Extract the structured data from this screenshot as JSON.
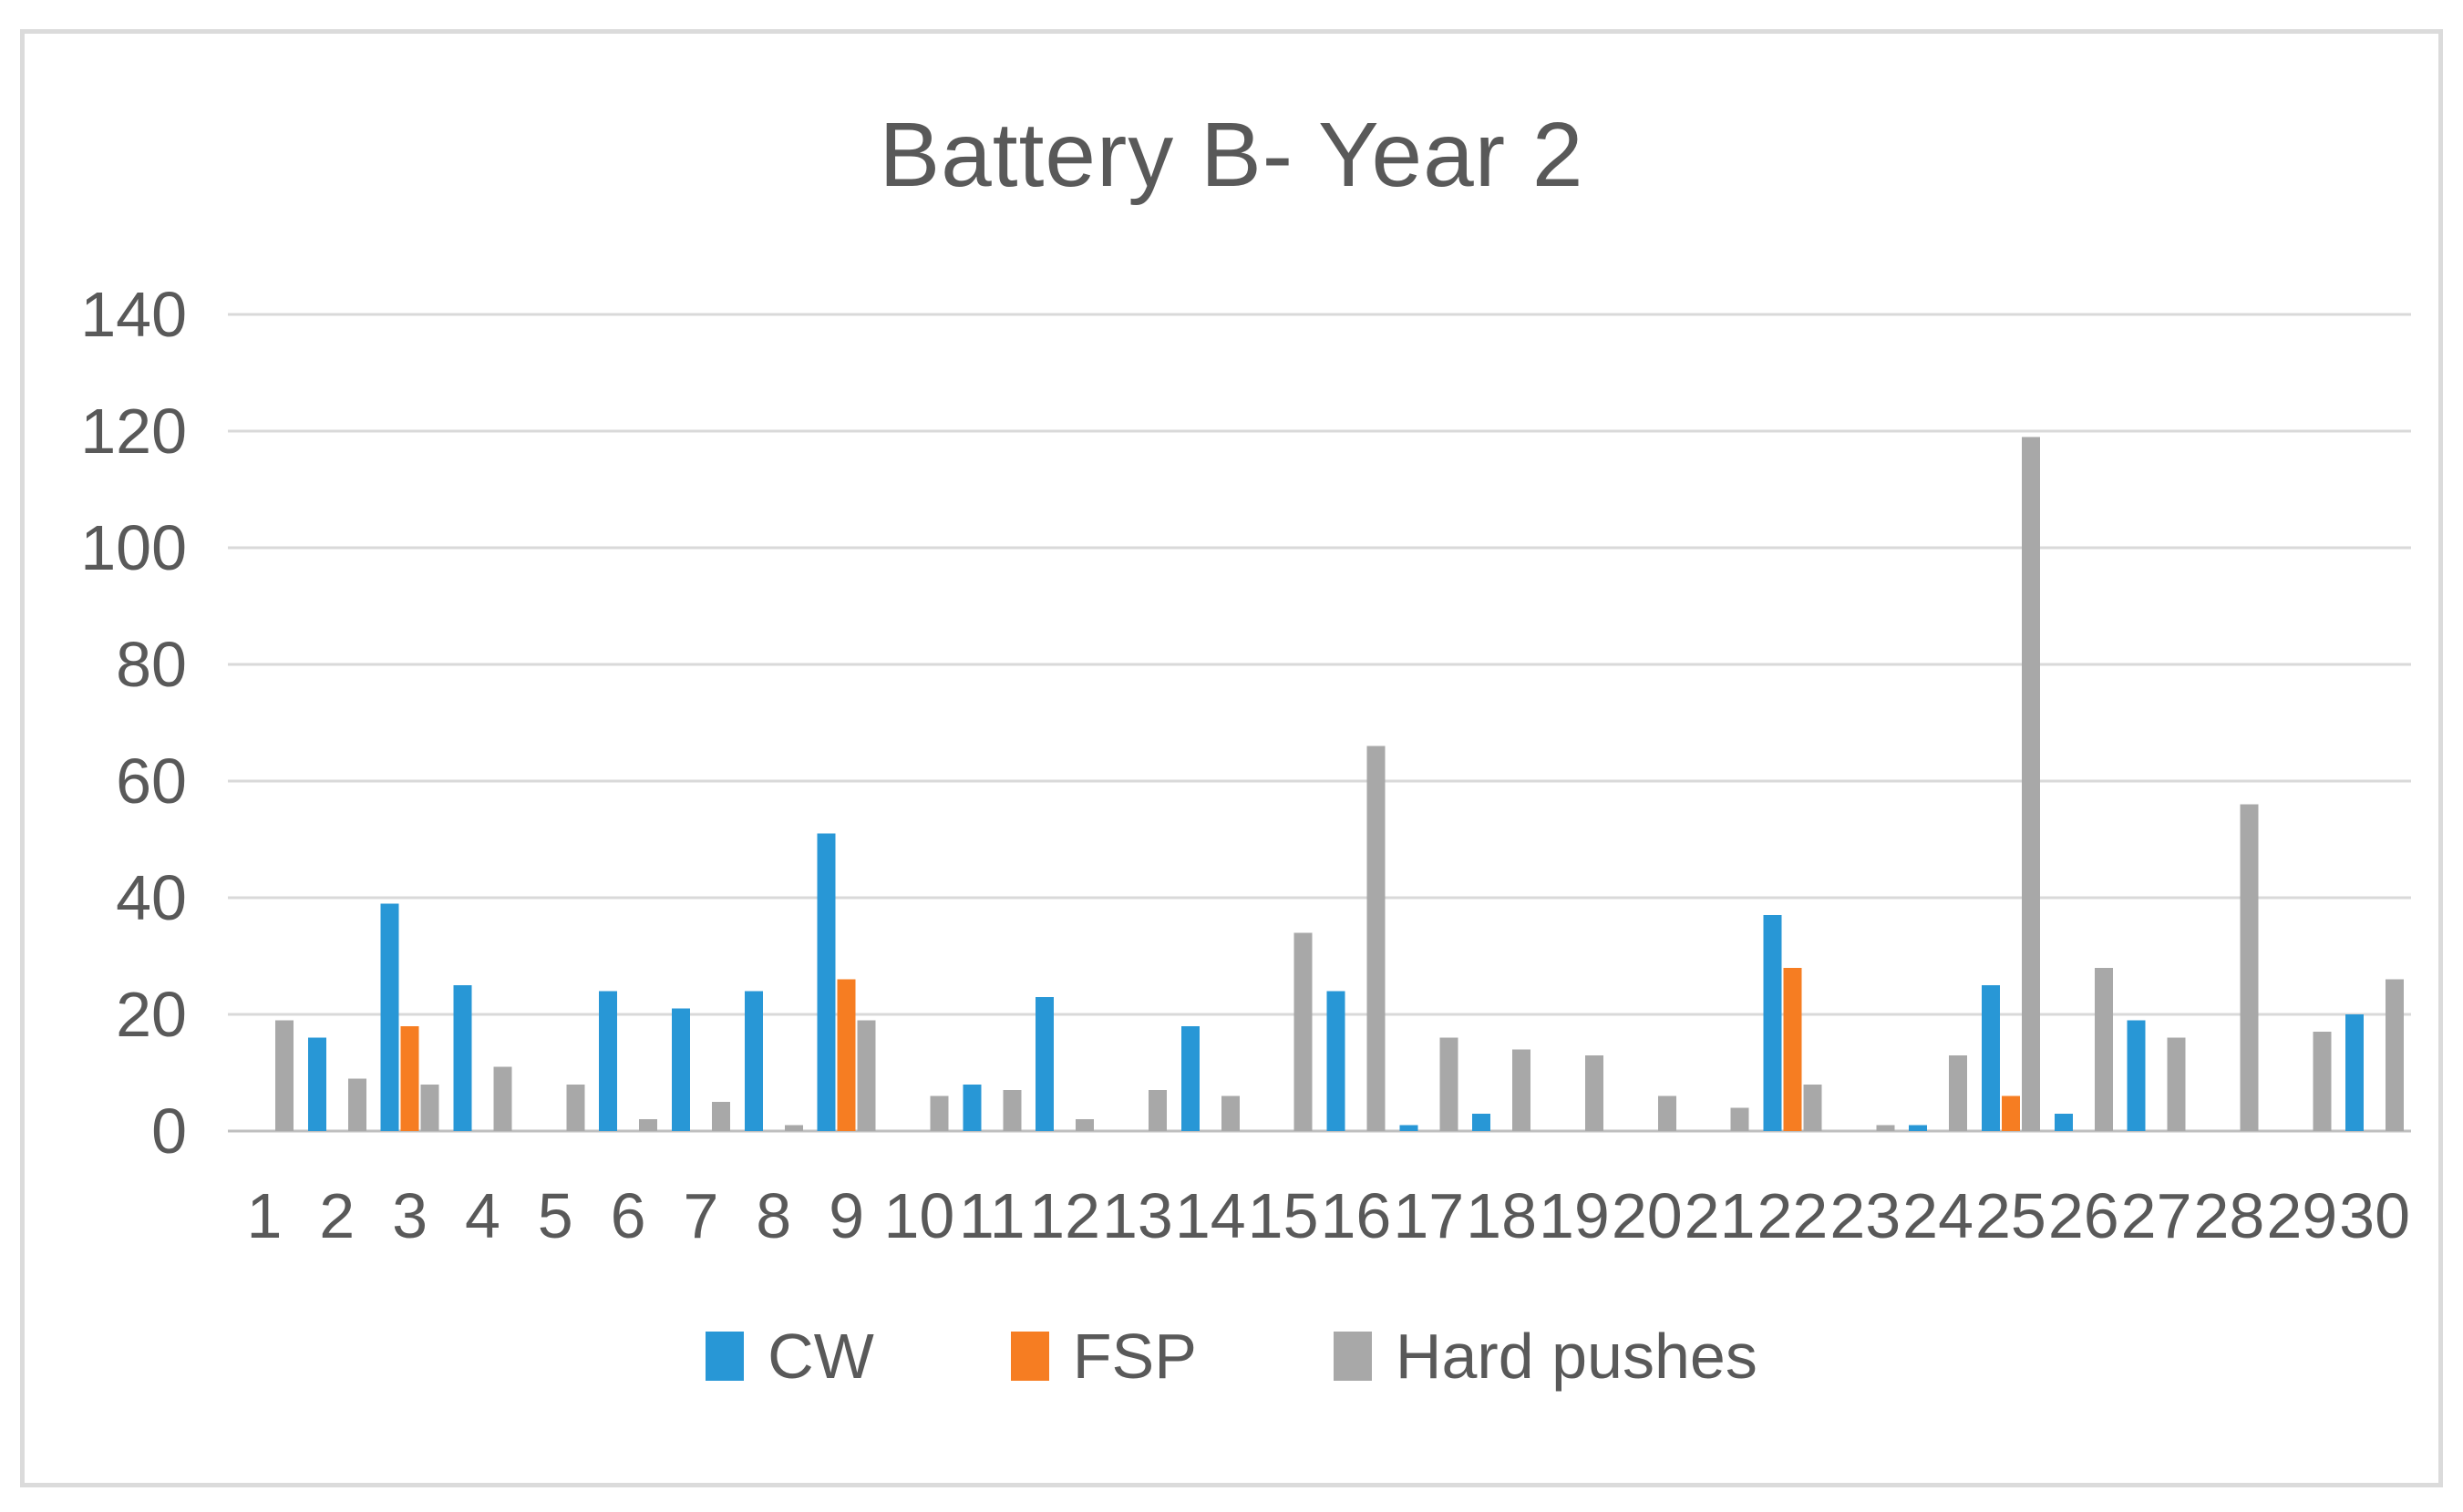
{
  "window": {
    "background": "#FFFFFF",
    "frame_border_color": "#DBDBDB"
  },
  "chart_data": {
    "type": "bar",
    "title": "Battery B- Year 2",
    "categories": [
      "1",
      "2",
      "3",
      "4",
      "5",
      "6",
      "7",
      "8",
      "9",
      "10",
      "11",
      "12",
      "13",
      "14",
      "15",
      "16",
      "17",
      "18",
      "19",
      "20",
      "21",
      "22",
      "23",
      "24",
      "25",
      "26",
      "27",
      "28",
      "29",
      "30"
    ],
    "series": [
      {
        "name": "CW",
        "color": "#2897D6",
        "values": [
          0,
          16,
          39,
          25,
          0,
          24,
          21,
          24,
          51,
          0,
          8,
          23,
          0,
          18,
          0,
          24,
          1,
          3,
          0,
          0,
          0,
          37,
          0,
          1,
          25,
          3,
          19,
          0,
          0,
          20
        ]
      },
      {
        "name": "FSP",
        "color": "#F67D22",
        "values": [
          0,
          0,
          18,
          0,
          0,
          0,
          0,
          0,
          26,
          0,
          0,
          0,
          0,
          0,
          0,
          0,
          0,
          0,
          0,
          0,
          0,
          28,
          0,
          0,
          6,
          0,
          0,
          0,
          0,
          0
        ]
      },
      {
        "name": "Hard pushes",
        "color": "#A8A8A8",
        "values": [
          19,
          9,
          8,
          11,
          8,
          2,
          5,
          1,
          19,
          6,
          7,
          2,
          7,
          6,
          34,
          66,
          16,
          14,
          13,
          6,
          4,
          8,
          1,
          13,
          119,
          28,
          16,
          56,
          17,
          26
        ]
      }
    ],
    "xlabel": "",
    "ylabel": "",
    "ylim": [
      0,
      140
    ],
    "yticks": [
      0,
      20,
      40,
      60,
      80,
      100,
      120,
      140
    ],
    "grid": true,
    "legend_position": "bottom",
    "text_color": "#595959",
    "gridline_color": "#D9D9D9",
    "axis_color": "#BFBFBF"
  }
}
